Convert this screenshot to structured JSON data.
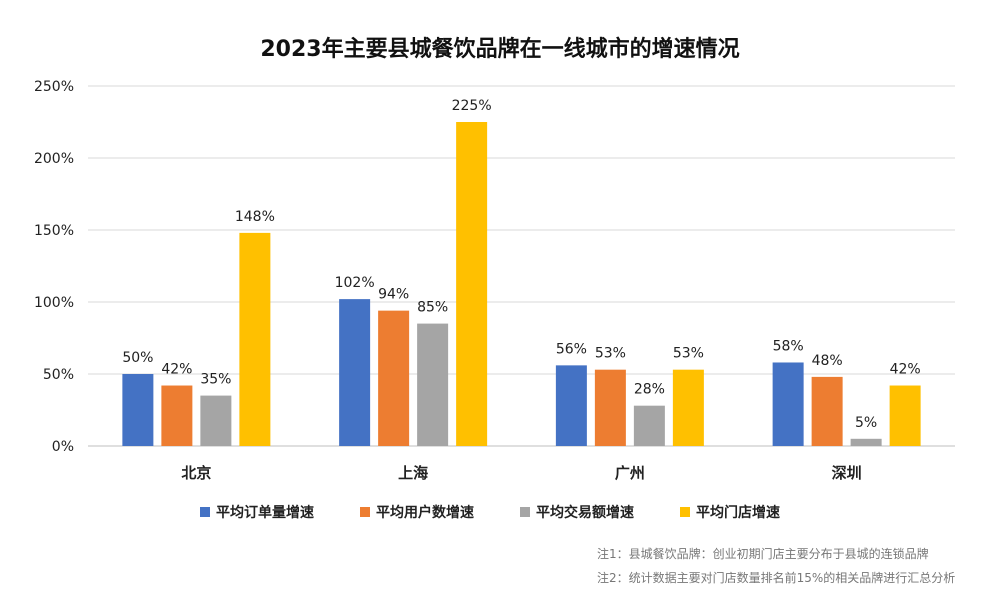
{
  "chart_data": {
    "type": "bar",
    "title": "2023年主要县城餐饮品牌在一线城市的增速情况",
    "categories": [
      "北京",
      "上海",
      "广州",
      "深圳"
    ],
    "series": [
      {
        "name": "平均订单量增速",
        "color": "#4472C4",
        "values": [
          50,
          102,
          56,
          58
        ]
      },
      {
        "name": "平均用户数增速",
        "color": "#ED7D31",
        "values": [
          42,
          94,
          53,
          48
        ]
      },
      {
        "name": "平均交易额增速",
        "color": "#A5A5A5",
        "values": [
          35,
          85,
          28,
          5
        ]
      },
      {
        "name": "平均门店增速",
        "color": "#FFC000",
        "values": [
          148,
          225,
          53,
          42
        ]
      }
    ],
    "ylim": [
      0,
      250
    ],
    "yticks": [
      0,
      50,
      100,
      150,
      200,
      250
    ],
    "value_suffix": "%",
    "grid": true,
    "legend_position": "bottom"
  },
  "notes": [
    "注1：县城餐饮品牌：创业初期门店主要分布于县城的连锁品牌",
    "注2：统计数据主要对门店数量排名前15%的相关品牌进行汇总分析"
  ]
}
